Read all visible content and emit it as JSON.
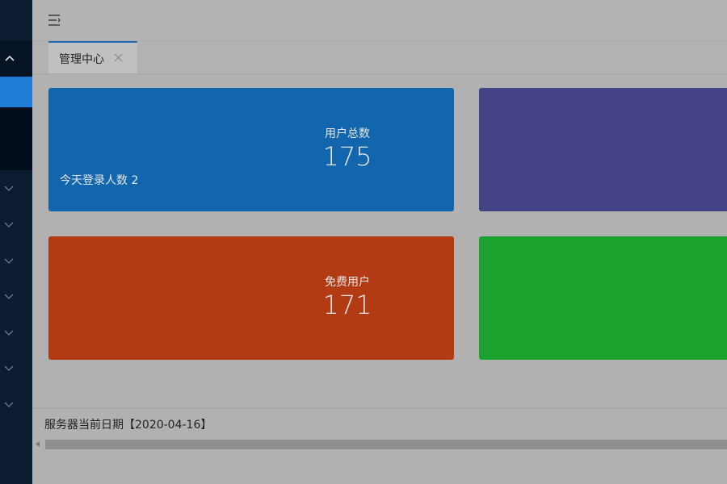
{
  "tabs": [
    {
      "label": "管理中心"
    }
  ],
  "cards": [
    {
      "title": "用户总数",
      "value": 175,
      "note": "今天登录人数 2"
    },
    {
      "title": "免费用户",
      "value": 171
    }
  ],
  "footer": {
    "server_date": "服务器当前日期【2020-04-16】"
  }
}
